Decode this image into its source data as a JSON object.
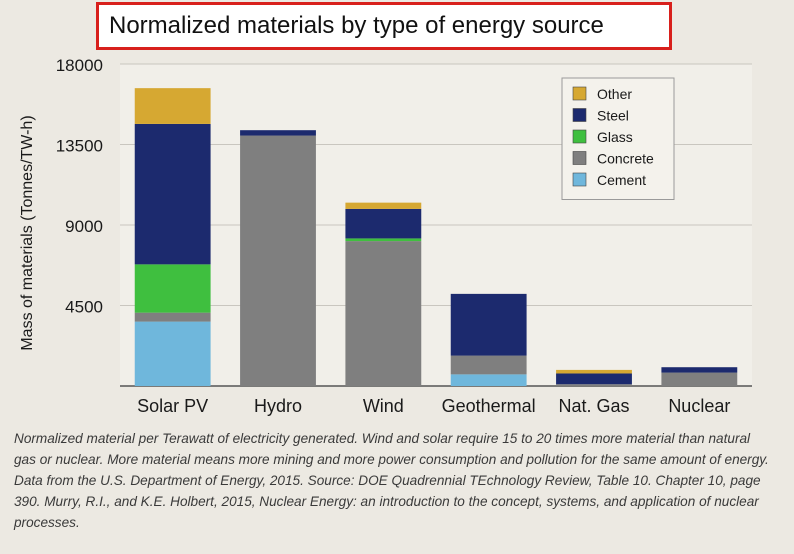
{
  "title": "Normalized materials by type of energy source",
  "caption": "Normalized material per Terawatt of electricity generated. Wind and solar require 15 to 20 times more material than natural gas or nuclear. More material means more mining and more power consumption and pollution for the same amount of energy. Data from the U.S. Department of Energy, 2015. Source: DOE Quadrennial TEchnology Review, Table 10. Chapter 10, page 390. Murry, R.I., and K.E. Holbert, 2015, Nuclear Energy: an introduction to the concept, systems, and application of nuclear processes.",
  "chart_data": {
    "type": "bar",
    "stacked": true,
    "title": "Normalized materials by type of energy source",
    "xlabel": "",
    "ylabel": "Mass of materials (Tonnes/TW-h)",
    "ylim": [
      0,
      18000
    ],
    "yticks": [
      4500,
      9000,
      13500,
      18000
    ],
    "grid": true,
    "legend_position": "top-right",
    "categories": [
      "Solar PV",
      "Hydro",
      "Wind",
      "Geothermal",
      "Nat. Gas",
      "Nuclear"
    ],
    "series": [
      {
        "name": "Cement",
        "color": "#6fb7dc",
        "values": [
          3600,
          0,
          0,
          650,
          0,
          0
        ]
      },
      {
        "name": "Concrete",
        "color": "#7f7f7f",
        "values": [
          500,
          14000,
          8100,
          1050,
          100,
          750
        ]
      },
      {
        "name": "Glass",
        "color": "#3fbf3f",
        "values": [
          2700,
          0,
          150,
          0,
          0,
          0
        ]
      },
      {
        "name": "Steel",
        "color": "#1c2a6e",
        "values": [
          7850,
          300,
          1650,
          3450,
          600,
          300
        ]
      },
      {
        "name": "Other",
        "color": "#d6a832",
        "values": [
          2000,
          0,
          350,
          0,
          200,
          0
        ]
      }
    ]
  }
}
